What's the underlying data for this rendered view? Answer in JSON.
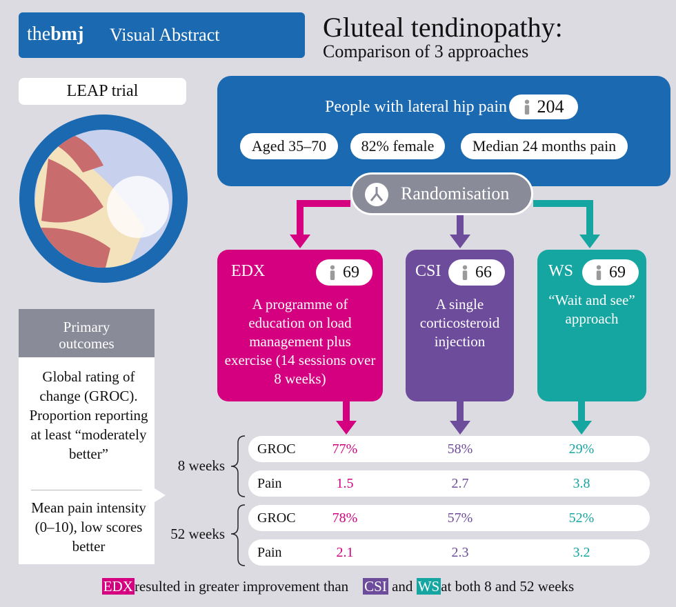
{
  "header": {
    "brand_the": "the",
    "brand_bmj": "bmj",
    "brand_label": "Visual Abstract",
    "title": "Gluteal tendinopathy:",
    "subtitle": "Comparison of 3 approaches"
  },
  "trial": "LEAP trial",
  "population": {
    "label": "People with lateral hip pain",
    "n": "204",
    "tags": [
      "Aged 35–70",
      "82% female",
      "Median 24 months pain"
    ]
  },
  "randomisation": "Randomisation",
  "arms": [
    {
      "name": "EDX",
      "n": "69",
      "description": "A programme of education on load management plus exercise (14 sessions over 8 weeks)"
    },
    {
      "name": "CSI",
      "n": "66",
      "description": "A single corticosteroid injection"
    },
    {
      "name": "WS",
      "n": "69",
      "description": "“Wait and see” approach"
    }
  ],
  "outcomes": {
    "heading": "Primary outcomes",
    "items": [
      "Global rating of change (GROC). Proportion reporting at least “moderately better”",
      "Mean pain intensity (0–10), low scores better"
    ]
  },
  "results": [
    {
      "timepoint": "8 weeks",
      "rows": [
        {
          "measure": "GROC",
          "values": [
            "77%",
            "58%",
            "29%"
          ]
        },
        {
          "measure": "Pain",
          "values": [
            "1.5",
            "2.7",
            "3.8"
          ]
        }
      ]
    },
    {
      "timepoint": "52 weeks",
      "rows": [
        {
          "measure": "GROC",
          "values": [
            "78%",
            "57%",
            "52%"
          ]
        },
        {
          "measure": "Pain",
          "values": [
            "2.1",
            "2.3",
            "3.2"
          ]
        }
      ]
    }
  ],
  "footer": {
    "parts": [
      "EDX",
      "resulted in greater improvement than",
      "CSI",
      "and",
      "WS",
      "at both 8 and 52 weeks"
    ]
  }
}
